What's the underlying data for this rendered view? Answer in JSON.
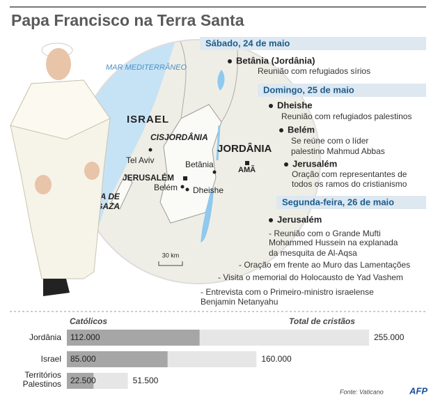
{
  "title": "Papa Francisco na Terra Santa",
  "schedule": [
    {
      "day": "Sábado, 24 de maio",
      "events": [
        {
          "place": "Betânia (Jordânia)",
          "lines": [
            "Reunião com refugiados sírios"
          ]
        }
      ]
    },
    {
      "day": "Domingo, 25 de maio",
      "events": [
        {
          "place": "Dheishe",
          "lines": [
            "Reunião com refugiados palestinos"
          ]
        },
        {
          "place": "Belém",
          "lines": [
            "Se reúne com o líder",
            "palestino Mahmud Abbas"
          ]
        },
        {
          "place": "Jerusalém",
          "lines": [
            "Oração com representantes de",
            "todos os ramos do cristianismo"
          ]
        }
      ]
    },
    {
      "day": "Segunda-feira, 26 de maio",
      "events": [
        {
          "place": "Jerusalém",
          "lines": [
            "- Reunião com o Grande Mufti",
            "Mohammed Hussein na explanada",
            "da mesquita de Al-Aqsa",
            "- Oração em frente ao Muro das Lamentações",
            "- Visita o memorial do Holocausto de Yad Vashem",
            "- Entrevista com o Primeiro-ministro israelense",
            "Benjamin Netanyahu"
          ]
        }
      ]
    }
  ],
  "map": {
    "sea": "MAR MEDITERRÂNEO",
    "israel": "ISRAEL",
    "west_bank": "CISJORDÂNIA",
    "jordan": "JORDÂNIA",
    "gaza": "FAIXA DE GAZA",
    "cities": [
      "Tel Aviv",
      "JERUSALÉM",
      "Betânia",
      "AMÃ",
      "Belém",
      "Dheishe"
    ],
    "scale": "30 km"
  },
  "stats": {
    "header_catholics": "Católicos",
    "header_total": "Total de cristãos",
    "categories": [
      "Jordânia",
      "Israel",
      "Territórios Palestinos"
    ],
    "catholics": {
      "values": [
        112000,
        85000,
        22500
      ],
      "value_labels": [
        "112.000",
        "85.000",
        "22.500"
      ]
    },
    "christians": {
      "values": [
        255000,
        160000,
        51500
      ],
      "value_labels": [
        "255.000",
        "160.000",
        "51.500"
      ]
    },
    "source": "Fonte: Vaticano",
    "logo": "AFP"
  }
}
